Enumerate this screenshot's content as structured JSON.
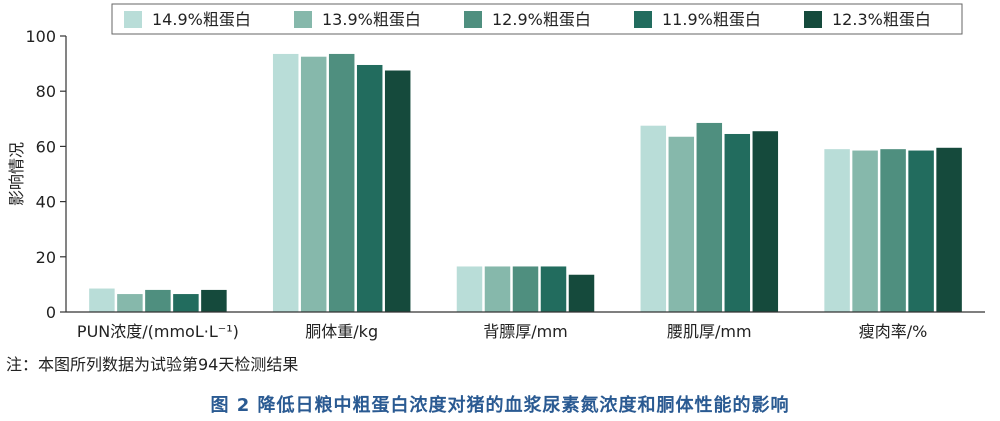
{
  "chart_data": {
    "type": "bar",
    "categories": [
      "PUN浓度/(mmoL·L⁻¹)",
      "胴体重/kg",
      "背膘厚/mm",
      "腰肌厚/mm",
      "瘦肉率/%"
    ],
    "series": [
      {
        "name": "14.9%粗蛋白",
        "color": "#b9ddd8",
        "values": [
          8.5,
          93.5,
          16.5,
          67.5,
          59.0
        ]
      },
      {
        "name": "13.9%粗蛋白",
        "color": "#86b8ab",
        "values": [
          6.5,
          92.5,
          16.5,
          63.5,
          58.5
        ]
      },
      {
        "name": "12.9%粗蛋白",
        "color": "#4f8f7f",
        "values": [
          8.0,
          93.5,
          16.5,
          68.5,
          59.0
        ]
      },
      {
        "name": "11.9%粗蛋白",
        "color": "#226c5e",
        "values": [
          6.5,
          89.5,
          16.5,
          64.5,
          58.5
        ]
      },
      {
        "name": "12.3%粗蛋白",
        "color": "#154a3c",
        "values": [
          8.0,
          87.5,
          13.5,
          65.5,
          59.5
        ]
      }
    ],
    "ylabel": "影响情况",
    "xlabel": "",
    "ylim": [
      0,
      100
    ],
    "yticks": [
      0,
      20,
      40,
      60,
      80,
      100
    ],
    "legend": "top",
    "grid": false
  },
  "note": "注：本图所列数据为试验第94天检测结果",
  "caption": "图 2  降低日粮中粗蛋白浓度对猪的血浆尿素氮浓度和胴体性能的影响"
}
